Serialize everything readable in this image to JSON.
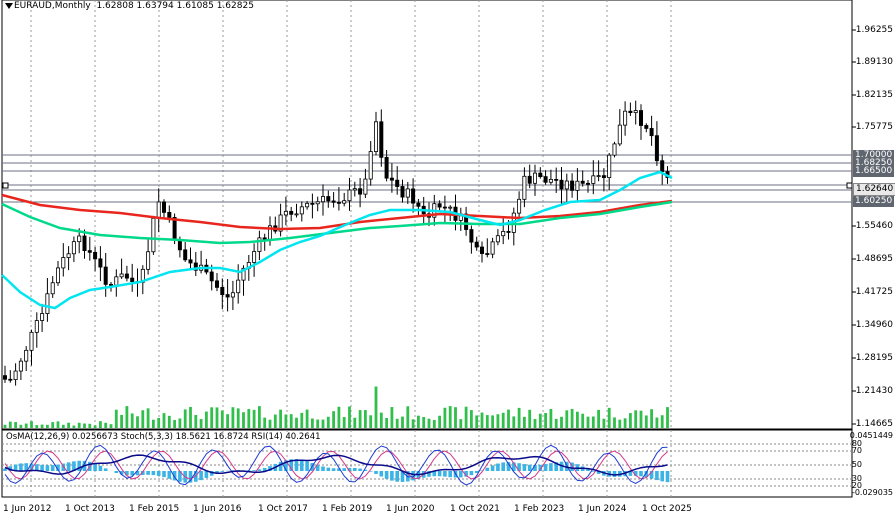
{
  "header": {
    "symbol": "EURAUD,Monthly",
    "ohlc": "1.62808 1.63794 1.61085 1.62825"
  },
  "price_axis": {
    "ticks": [
      "1.96255",
      "1.89130",
      "1.82135",
      "1.75775",
      "1.55460",
      "1.48695",
      "1.41725",
      "1.34960",
      "1.28195",
      "1.21430",
      "1.14665"
    ],
    "tags": {
      "r1": "1.70000",
      "r2": "1.68250",
      "r3": "1.66500",
      "current": "1.62640",
      "s1": "1.60250"
    }
  },
  "time_axis": [
    "1 Jun 2012",
    "1 Oct 2013",
    "1 Feb 2015",
    "1 Jun 2016",
    "1 Oct 2017",
    "1 Feb 2019",
    "1 Jun 2020",
    "1 Oct 2021",
    "1 Feb 2023",
    "1 Jun 2024",
    "1 Oct 2025"
  ],
  "oscillator": {
    "osma_label": "OsMA(12,26,9)",
    "osma_value": "0.0256673",
    "stoch_label": "Stoch(5,3,3)",
    "stoch_values": "18.5621 16.8724",
    "rsi_label": "RSI(14)",
    "rsi_value": "40.2641",
    "scale_top": "0.0451449",
    "scale_bottom": "-0.029035",
    "levels": [
      "80",
      "70",
      "50",
      "30",
      "20"
    ]
  },
  "colors": {
    "background": "#ffffff",
    "ema_fast": "#00e5f0",
    "ema_mid": "#00d98a",
    "ema_slow": "#e8261e",
    "level_lines": "#6b7280",
    "osma_hist": "#3ab4e6",
    "stoch_main": "#1f3bd1",
    "stoch_signal": "#d63a8a",
    "rsi": "#0a0a8a"
  }
}
